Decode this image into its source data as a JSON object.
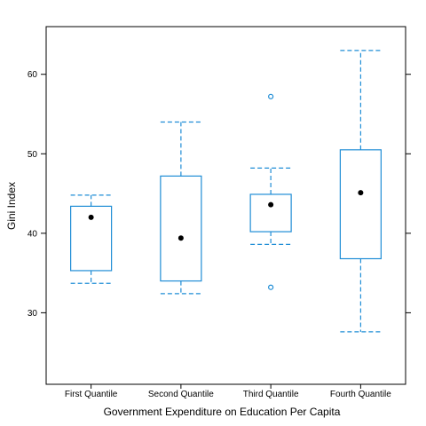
{
  "chart_data": {
    "type": "box",
    "title": "",
    "xlabel": "Government Expenditure on Education Per Capita",
    "ylabel": "Gini Index",
    "ylim": [
      21,
      66
    ],
    "yticks": [
      30,
      40,
      50,
      60
    ],
    "grid": false,
    "categories": [
      "First Quantile",
      "Second Quantile",
      "Third Quantile",
      "Fourth Quantile"
    ],
    "boxes": [
      {
        "category": "First Quantile",
        "whisker_low": 33.7,
        "q1": 35.3,
        "median": 42.0,
        "q3": 43.4,
        "whisker_high": 44.8,
        "outliers": []
      },
      {
        "category": "Second Quantile",
        "whisker_low": 32.4,
        "q1": 34.0,
        "median": 39.4,
        "q3": 47.2,
        "whisker_high": 54.0,
        "outliers": []
      },
      {
        "category": "Third Quantile",
        "whisker_low": 38.6,
        "q1": 40.2,
        "median": 43.6,
        "q3": 44.9,
        "whisker_high": 48.2,
        "outliers": [
          57.2,
          33.2
        ]
      },
      {
        "category": "Fourth Quantile",
        "whisker_low": 27.6,
        "q1": 36.8,
        "median": 45.1,
        "q3": 50.5,
        "whisker_high": 63.0,
        "outliers": []
      }
    ],
    "colors": {
      "box": "#1f8dd6",
      "median": "#000000"
    }
  }
}
